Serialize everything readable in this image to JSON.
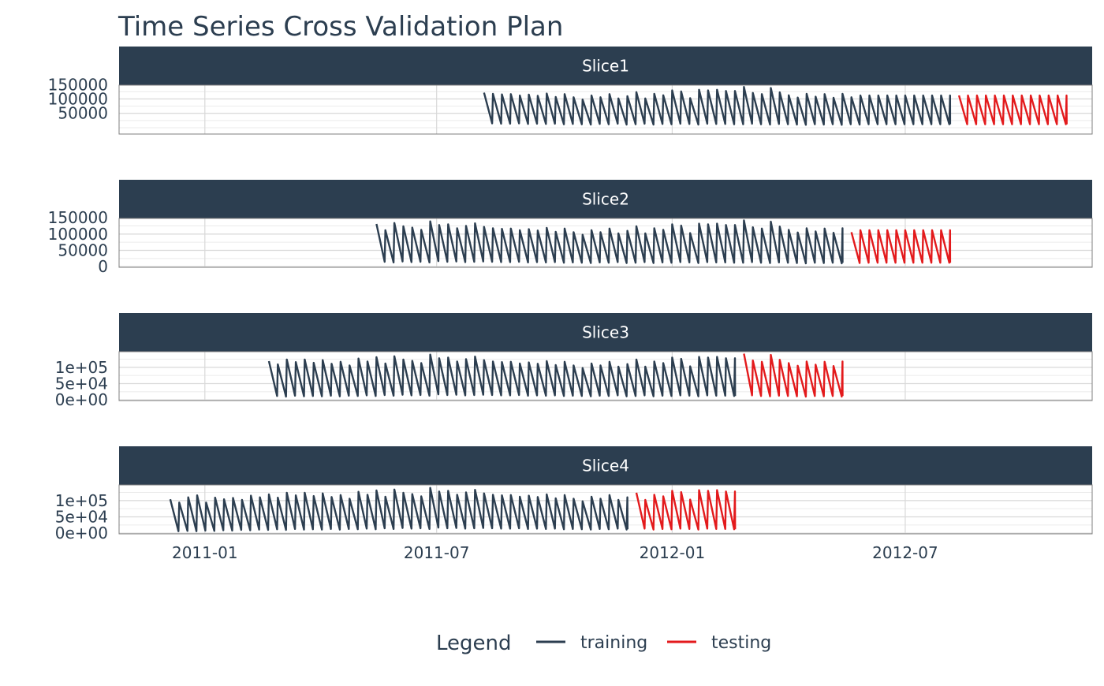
{
  "chart_data": {
    "type": "line",
    "title": "Time Series Cross Validation Plan",
    "x_axis": {
      "ticks": [
        "2011-01",
        "2011-07",
        "2012-01",
        "2012-07"
      ],
      "tick_dates": [
        "2011-01-01",
        "2011-07-01",
        "2012-01-01",
        "2012-07-01"
      ],
      "range": [
        "2010-10-26",
        "2012-11-24"
      ]
    },
    "legend": {
      "title": "Legend",
      "position": "bottom",
      "items": [
        {
          "label": "training",
          "color": "#2C3E50"
        },
        {
          "label": "testing",
          "color": "#E31A1C"
        }
      ]
    },
    "series_pattern": {
      "frequency": "weekly",
      "note_values": "each weekly segment shown as a sharp sawtooth between low and high values",
      "high_values": [
        104000,
        94000,
        110000,
        116000,
        94000,
        109000,
        104000,
        108000,
        102000,
        115000,
        110000,
        119000,
        109000,
        124000,
        116000,
        124000,
        114000,
        122000,
        111000,
        117000,
        106000,
        127000,
        118000,
        131000,
        112000,
        134000,
        124000,
        120000,
        113000,
        139000,
        128000,
        130000,
        118000,
        125000,
        133000,
        122000,
        118000,
        116000,
        117000,
        112000,
        115000,
        111000,
        119000,
        107000,
        117000,
        106000,
        98000,
        112000,
        106000,
        117000,
        102000,
        110000,
        124000,
        102000,
        118000,
        113000,
        130000,
        126000,
        103000,
        132000,
        130000,
        132000,
        128000,
        128000,
        142000,
        121000,
        117000,
        138000,
        123000,
        113000,
        105000,
        118000,
        108000,
        117000,
        104000,
        118000,
        106000,
        112000
      ],
      "low_values": [
        6000,
        7000,
        6000,
        8000,
        7000,
        9000,
        8000,
        10000,
        9000,
        11000,
        10000,
        12000,
        10000,
        13000,
        11000,
        12000,
        11000,
        13000,
        11000,
        13000,
        12000,
        14000,
        12000,
        15000,
        13000,
        16000,
        14000,
        15000,
        13000,
        17000,
        15000,
        16000,
        14000,
        15000,
        16000,
        15000,
        14000,
        14000,
        15000,
        13000,
        14000,
        13000,
        14000,
        12000,
        13000,
        12000,
        11000,
        13000,
        12000,
        14000,
        11000,
        12000,
        14000,
        11000,
        13000,
        12000,
        14000,
        13000,
        11000,
        14000,
        13000,
        13000,
        12000,
        12000,
        14000,
        12000,
        11000,
        13000,
        12000,
        11000,
        10000,
        12000,
        11000,
        12000,
        10000,
        12000,
        11000,
        12000
      ]
    },
    "panels": [
      {
        "name": "Slice1",
        "y_ticks": [
          "150000",
          "100000",
          "50000"
        ],
        "y_tick_values": [
          150000,
          100000,
          50000
        ],
        "ylim": [
          -22000,
          148000
        ],
        "training": {
          "start": "2011-08-07",
          "end": "2012-08-05"
        },
        "testing": {
          "start": "2012-08-12",
          "end": "2012-11-04"
        }
      },
      {
        "name": "Slice2",
        "y_ticks": [
          "150000",
          "100000",
          "50000",
          "0"
        ],
        "y_tick_values": [
          150000,
          100000,
          50000,
          0
        ],
        "ylim": [
          -2000,
          148000
        ],
        "training": {
          "start": "2011-05-15",
          "end": "2012-05-13"
        },
        "testing": {
          "start": "2012-05-20",
          "end": "2012-08-05"
        }
      },
      {
        "name": "Slice3",
        "y_ticks": [
          "1e+05",
          "5e+04",
          "0e+00"
        ],
        "y_tick_values": [
          100000,
          50000,
          0
        ],
        "ylim": [
          -2000,
          148000
        ],
        "training": {
          "start": "2011-02-20",
          "end": "2012-02-19"
        },
        "testing": {
          "start": "2012-02-26",
          "end": "2012-05-13"
        }
      },
      {
        "name": "Slice4",
        "y_ticks": [
          "1e+05",
          "5e+04",
          "0e+00"
        ],
        "y_tick_values": [
          100000,
          50000,
          0
        ],
        "ylim": [
          -2000,
          148000
        ],
        "training": {
          "start": "2010-12-05",
          "end": "2011-11-27"
        },
        "testing": {
          "start": "2011-12-04",
          "end": "2012-02-19"
        }
      }
    ]
  }
}
